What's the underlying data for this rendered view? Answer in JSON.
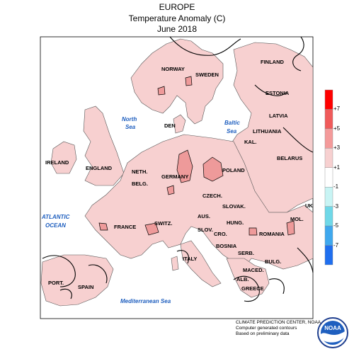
{
  "header": {
    "line1": "EUROPE",
    "line2": "Temperature Anomaly (C)",
    "line3": "June 2018"
  },
  "colors": {
    "positive_fill": "#f7d0d0",
    "positive_dark": "#ee9a9a",
    "land_border": "#555555",
    "contour": "#000000",
    "sea_label": "#1f5fbf"
  },
  "countries": {
    "norway": "NORWAY",
    "sweden": "SWEDEN",
    "finland": "FINLAND",
    "estonia": "ESTONIA",
    "latvia": "LATVIA",
    "lithuania": "LITHUANIA",
    "kal": "KAL.",
    "belarus": "BELARUS",
    "den": "DEN",
    "ireland": "IRELAND",
    "england": "ENGLAND",
    "neth": "NETH.",
    "belg": "BELG.",
    "germany": "GERMANY",
    "poland": "POLAND",
    "czech": "CZECH.",
    "slovak": "SLOVAK.",
    "france": "FRANCE",
    "switz": "SWITZ.",
    "aus": "AUS.",
    "hung": "HUNG.",
    "romania": "ROMANIA",
    "mol": "MOL.",
    "slov": "SLOV.",
    "cro": "CRO.",
    "bosnia": "BOSNIA",
    "serb": "SERB.",
    "bulg": "BULG.",
    "maced": "MACED.",
    "alb": "ALB.",
    "greece": "GREECE",
    "italy": "ITALY",
    "port": "PORT.",
    "spain": "SPAIN",
    "uk_edge": "UK"
  },
  "seas": {
    "north_line1": "North",
    "north_line2": "Sea",
    "baltic_line1": "Baltic",
    "baltic_line2": "Sea",
    "atlantic_line1": "ATLANTIC",
    "atlantic_line2": "OCEAN",
    "mediterranean": "Mediterranean Sea"
  },
  "colorbar": {
    "labels": [
      "+7",
      "+5",
      "+3",
      "+1",
      "-1",
      "-3",
      "-5",
      "-7"
    ],
    "segments": [
      "#ff0000",
      "#f05a5a",
      "#f49a9a",
      "#f7d0d0",
      "#ffffff",
      "#c8f4f4",
      "#6fd8e8",
      "#3fa8ee",
      "#1f6fef"
    ]
  },
  "credits": {
    "line1": "CLIMATE PREDICTION CENTER, NOAA",
    "line2": "Computer generated contours",
    "line3": "Based on preliminary data"
  },
  "logo": {
    "text": "NOAA"
  }
}
